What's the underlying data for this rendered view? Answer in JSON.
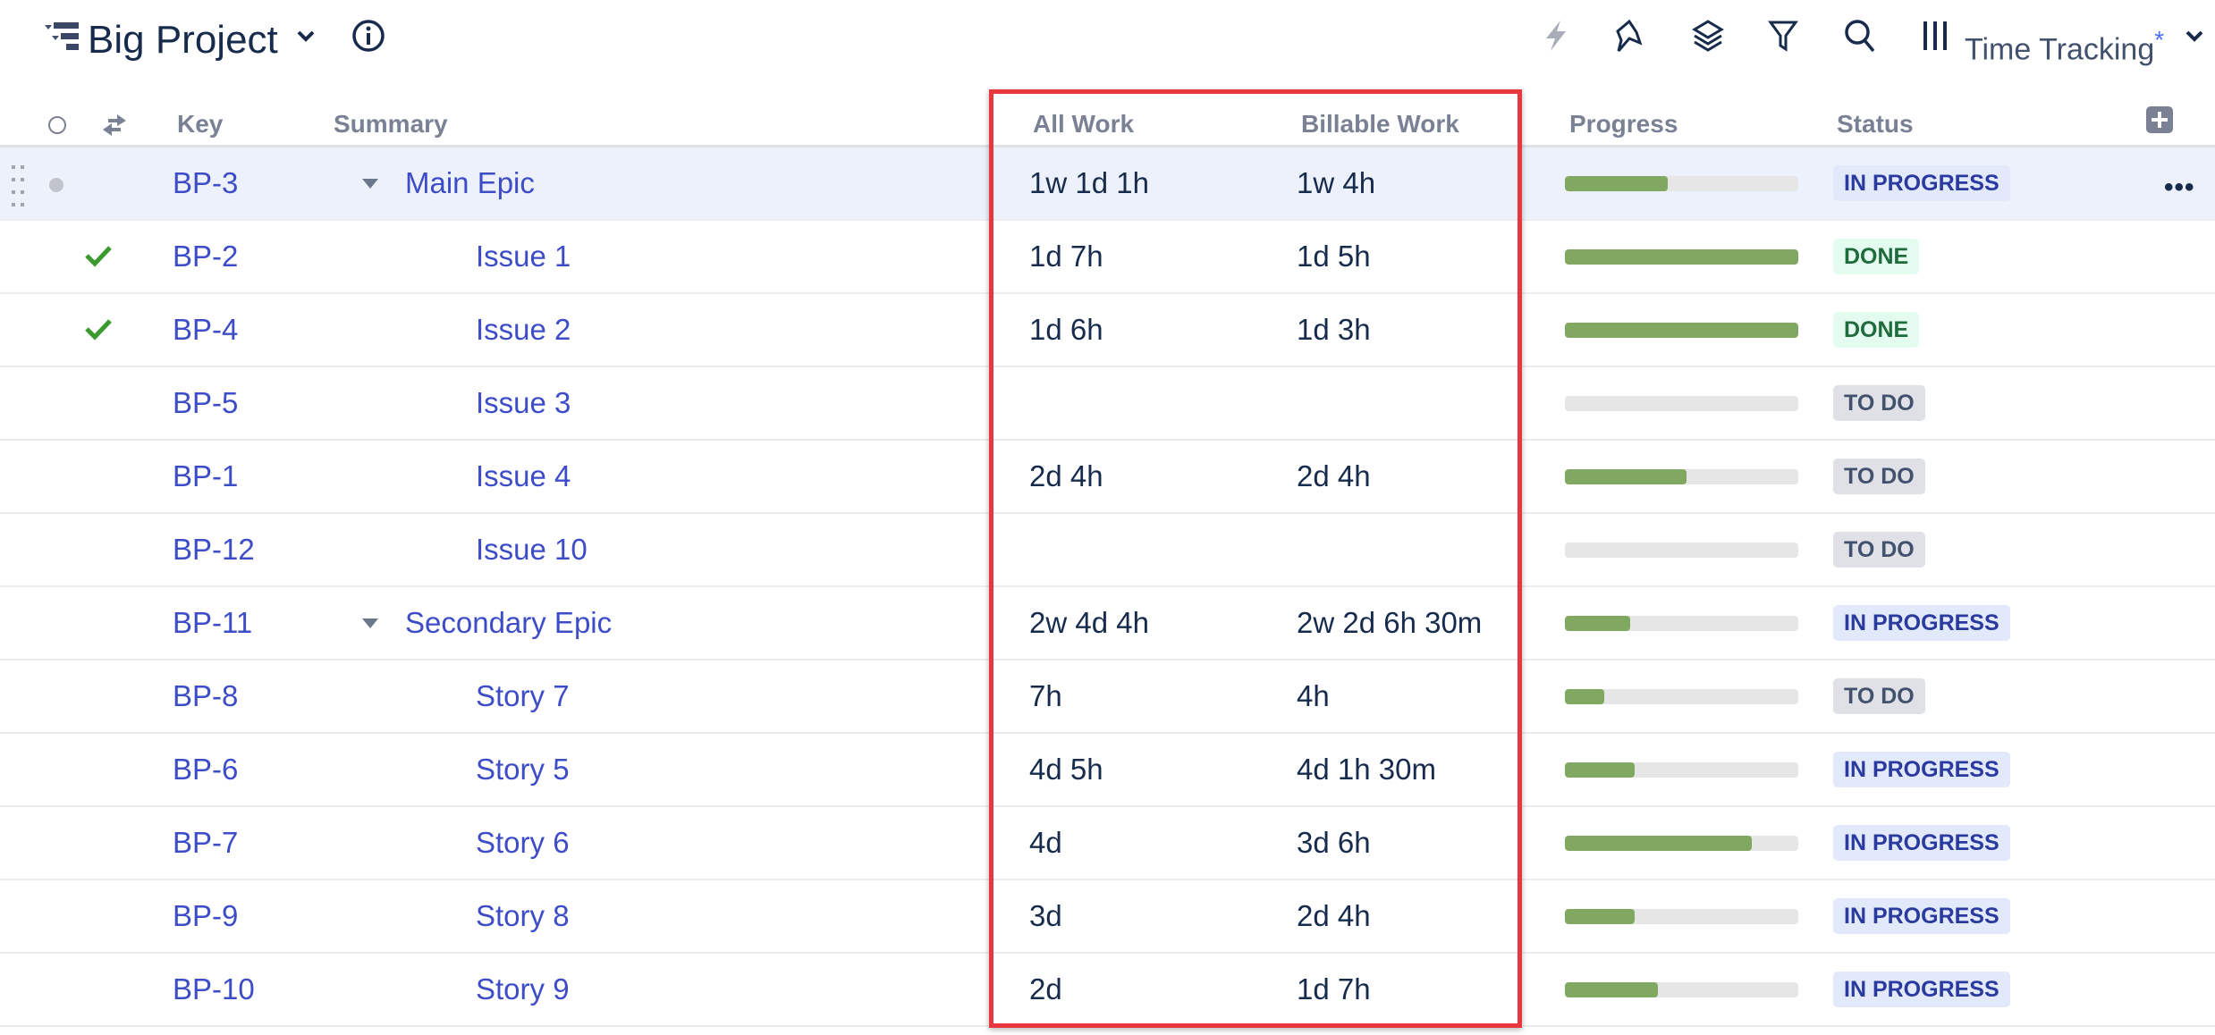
{
  "header": {
    "title": "Big Project",
    "view_name": "Time Tracking",
    "view_modified": "*",
    "icons": [
      "structure-icon",
      "chevron-down-icon",
      "info-icon",
      "automation-icon",
      "pin-icon",
      "layers-icon",
      "filter-icon",
      "search-icon",
      "columns-icon",
      "chevron-down-icon"
    ]
  },
  "columns": {
    "key": "Key",
    "summary": "Summary",
    "all_work": "All Work",
    "billable_work": "Billable Work",
    "progress": "Progress",
    "status": "Status"
  },
  "colors": {
    "link": "#3d4cc7",
    "progress_fill": "#80a860",
    "highlight": "#e8383d",
    "in_progress_bg": "#e2e9fb",
    "in_progress_fg": "#2a3a9e",
    "done_bg": "#e3fcef",
    "done_fg": "#1f6b3c",
    "todo_bg": "#dfe1e6",
    "todo_fg": "#42526e"
  },
  "rows": [
    {
      "key": "BP-3",
      "summary": "Main Epic",
      "level": 0,
      "expanded": true,
      "all_work": "1w 1d 1h",
      "billable_work": "1w 4h",
      "progress": 44,
      "status": "IN PROGRESS",
      "selected": true,
      "done": false
    },
    {
      "key": "BP-2",
      "summary": "Issue 1",
      "level": 1,
      "all_work": "1d 7h",
      "billable_work": "1d 5h",
      "progress": 100,
      "status": "DONE",
      "done": true
    },
    {
      "key": "BP-4",
      "summary": "Issue 2",
      "level": 1,
      "all_work": "1d 6h",
      "billable_work": "1d 3h",
      "progress": 100,
      "status": "DONE",
      "done": true
    },
    {
      "key": "BP-5",
      "summary": "Issue 3",
      "level": 1,
      "all_work": "",
      "billable_work": "",
      "progress": 0,
      "status": "TO DO"
    },
    {
      "key": "BP-1",
      "summary": "Issue 4",
      "level": 1,
      "all_work": "2d 4h",
      "billable_work": "2d 4h",
      "progress": 52,
      "status": "TO DO"
    },
    {
      "key": "BP-12",
      "summary": "Issue 10",
      "level": 1,
      "all_work": "",
      "billable_work": "",
      "progress": 0,
      "status": "TO DO"
    },
    {
      "key": "BP-11",
      "summary": "Secondary Epic",
      "level": 0,
      "expanded": true,
      "all_work": "2w 4d 4h",
      "billable_work": "2w 2d 6h 30m",
      "progress": 28,
      "status": "IN PROGRESS"
    },
    {
      "key": "BP-8",
      "summary": "Story 7",
      "level": 1,
      "all_work": "7h",
      "billable_work": "4h",
      "progress": 17,
      "status": "TO DO"
    },
    {
      "key": "BP-6",
      "summary": "Story 5",
      "level": 1,
      "all_work": "4d 5h",
      "billable_work": "4d 1h 30m",
      "progress": 30,
      "status": "IN PROGRESS"
    },
    {
      "key": "BP-7",
      "summary": "Story 6",
      "level": 1,
      "all_work": "4d",
      "billable_work": "3d 6h",
      "progress": 80,
      "status": "IN PROGRESS"
    },
    {
      "key": "BP-9",
      "summary": "Story 8",
      "level": 1,
      "all_work": "3d",
      "billable_work": "2d 4h",
      "progress": 30,
      "status": "IN PROGRESS"
    },
    {
      "key": "BP-10",
      "summary": "Story 9",
      "level": 1,
      "all_work": "2d",
      "billable_work": "1d 7h",
      "progress": 40,
      "status": "IN PROGRESS"
    }
  ]
}
